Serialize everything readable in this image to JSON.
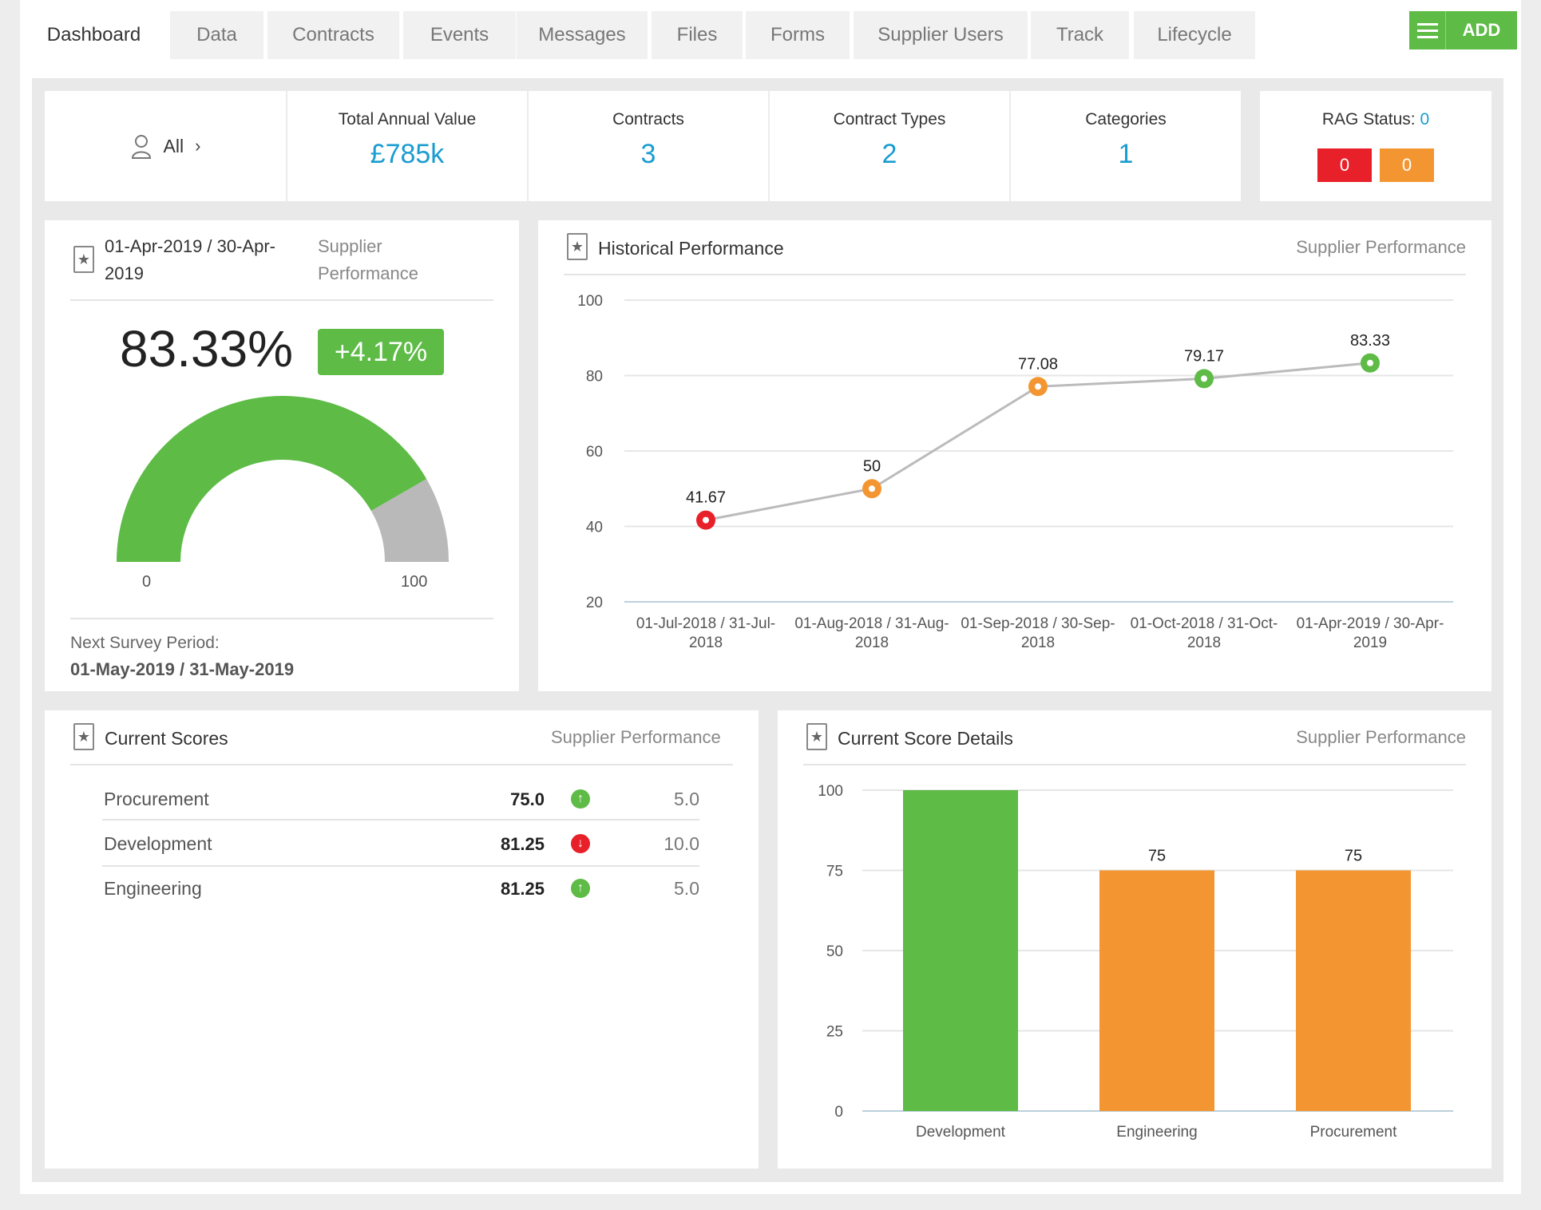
{
  "tabs": [
    {
      "label": "Dashboard",
      "active": true
    },
    {
      "label": "Data"
    },
    {
      "label": "Contracts"
    },
    {
      "label": "Events"
    },
    {
      "label": "Messages"
    },
    {
      "label": "Files"
    },
    {
      "label": "Forms"
    },
    {
      "label": "Supplier Users"
    },
    {
      "label": "Track"
    },
    {
      "label": "Lifecycle"
    }
  ],
  "add_button": {
    "label": "ADD"
  },
  "filter": {
    "label": "All"
  },
  "stats": [
    {
      "title": "Total Annual Value",
      "value": "£785k"
    },
    {
      "title": "Contracts",
      "value": "3"
    },
    {
      "title": "Contract Types",
      "value": "2"
    },
    {
      "title": "Categories",
      "value": "1"
    }
  ],
  "rag": {
    "label": "RAG Status:",
    "count": "0",
    "red": "0",
    "amber": "0"
  },
  "score_panel": {
    "period": "01-Apr-2019 / 30-Apr-2019",
    "subtitle": "Supplier Performance",
    "score": "83.33%",
    "change": "+4.17%",
    "gauge_value": 83.33,
    "gauge_min": "0",
    "gauge_max": "100",
    "next_label": "Next Survey Period:",
    "next_period": "01-May-2019 / 31-May-2019"
  },
  "historical": {
    "title": "Historical Performance",
    "subtitle": "Supplier Performance",
    "chart_data": {
      "type": "line",
      "categories": [
        "01-Jul-2018 / 31-Jul-2018",
        "01-Aug-2018 / 31-Aug-2018",
        "01-Sep-2018 / 30-Sep-2018",
        "01-Oct-2018 / 31-Oct-2018",
        "01-Apr-2019 / 30-Apr-2019"
      ],
      "values": [
        41.67,
        50,
        77.08,
        79.17,
        83.33
      ],
      "labels": [
        "41.67",
        "50",
        "77.08",
        "79.17",
        "83.33"
      ],
      "point_colors": [
        "#e8202a",
        "#f39632",
        "#f39632",
        "#5dbb46",
        "#5dbb46"
      ],
      "ylim": [
        20,
        100
      ],
      "yticks": [
        "20",
        "40",
        "60",
        "80",
        "100"
      ],
      "grid": true
    }
  },
  "current_scores": {
    "title": "Current Scores",
    "subtitle": "Supplier Performance",
    "rows": [
      {
        "label": "Procurement",
        "value": "75.0",
        "direction": "up",
        "delta": "5.0"
      },
      {
        "label": "Development",
        "value": "81.25",
        "direction": "down",
        "delta": "10.0"
      },
      {
        "label": "Engineering",
        "value": "81.25",
        "direction": "up",
        "delta": "5.0"
      }
    ]
  },
  "score_details": {
    "title": "Current Score Details",
    "subtitle": "Supplier Performance",
    "chart_data": {
      "type": "bar",
      "categories": [
        "Development",
        "Engineering",
        "Procurement"
      ],
      "values": [
        100,
        75,
        75
      ],
      "data_labels": [
        "",
        "75",
        "75"
      ],
      "colors": [
        "#5dbb46",
        "#f39632",
        "#f39632"
      ],
      "ylim": [
        0,
        100
      ],
      "yticks": [
        "0",
        "25",
        "50",
        "75",
        "100"
      ],
      "grid": true
    }
  },
  "colors": {
    "accent": "#1a9cd0",
    "green": "#5dbb46",
    "amber": "#f39632",
    "red": "#e8202a",
    "grey": "#b9b9b9"
  }
}
